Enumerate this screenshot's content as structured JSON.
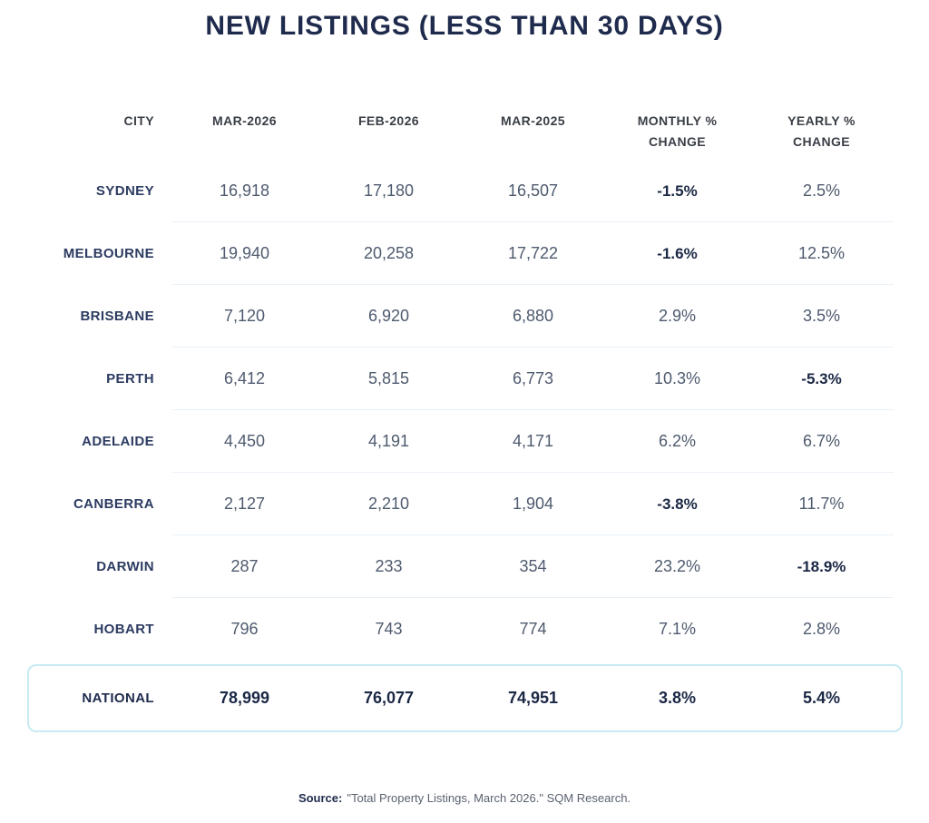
{
  "chart_data": {
    "type": "table",
    "title": "NEW LISTINGS (LESS THAN 30 DAYS)",
    "columns": [
      "CITY",
      "MAR-2026",
      "FEB-2026",
      "MAR-2025",
      "MONTHLY %\nCHANGE",
      "YEARLY %\nCHANGE"
    ],
    "rows": [
      {
        "city": "SYDNEY",
        "values": [
          "16,918",
          "17,180",
          "16,507",
          "-1.5%",
          "2.5%"
        ]
      },
      {
        "city": "MELBOURNE",
        "values": [
          "19,940",
          "20,258",
          "17,722",
          "-1.6%",
          "12.5%"
        ]
      },
      {
        "city": "BRISBANE",
        "values": [
          "7,120",
          "6,920",
          "6,880",
          "2.9%",
          "3.5%"
        ]
      },
      {
        "city": "PERTH",
        "values": [
          "6,412",
          "5,815",
          "6,773",
          "10.3%",
          "-5.3%"
        ]
      },
      {
        "city": "ADELAIDE",
        "values": [
          "4,450",
          "4,191",
          "4,171",
          "6.2%",
          "6.7%"
        ]
      },
      {
        "city": "CANBERRA",
        "values": [
          "2,127",
          "2,210",
          "1,904",
          "-3.8%",
          "11.7%"
        ]
      },
      {
        "city": "DARWIN",
        "values": [
          "287",
          "233",
          "354",
          "23.2%",
          "-18.9%"
        ]
      },
      {
        "city": "HOBART",
        "values": [
          "796",
          "743",
          "774",
          "7.1%",
          "2.8%"
        ]
      }
    ],
    "national_row": {
      "city": "NATIONAL",
      "values": [
        "78,999",
        "76,077",
        "74,951",
        "3.8%",
        "5.4%"
      ]
    },
    "source_label": "Source:",
    "source_text": "\"Total Property Listings, March 2026.\" SQM Research.",
    "layout": {
      "grid": "off",
      "negative_values_bold": true
    },
    "colors": {
      "title_navy": "#1f2b4d",
      "header_charcoal": "#3a3f46",
      "city_navy": "#2c3b61",
      "value_gray": "#4e5a6e",
      "bold_value_navy": "#1b2845",
      "separator": "#e9f1f8",
      "national_border": "#c7eaf3"
    }
  }
}
